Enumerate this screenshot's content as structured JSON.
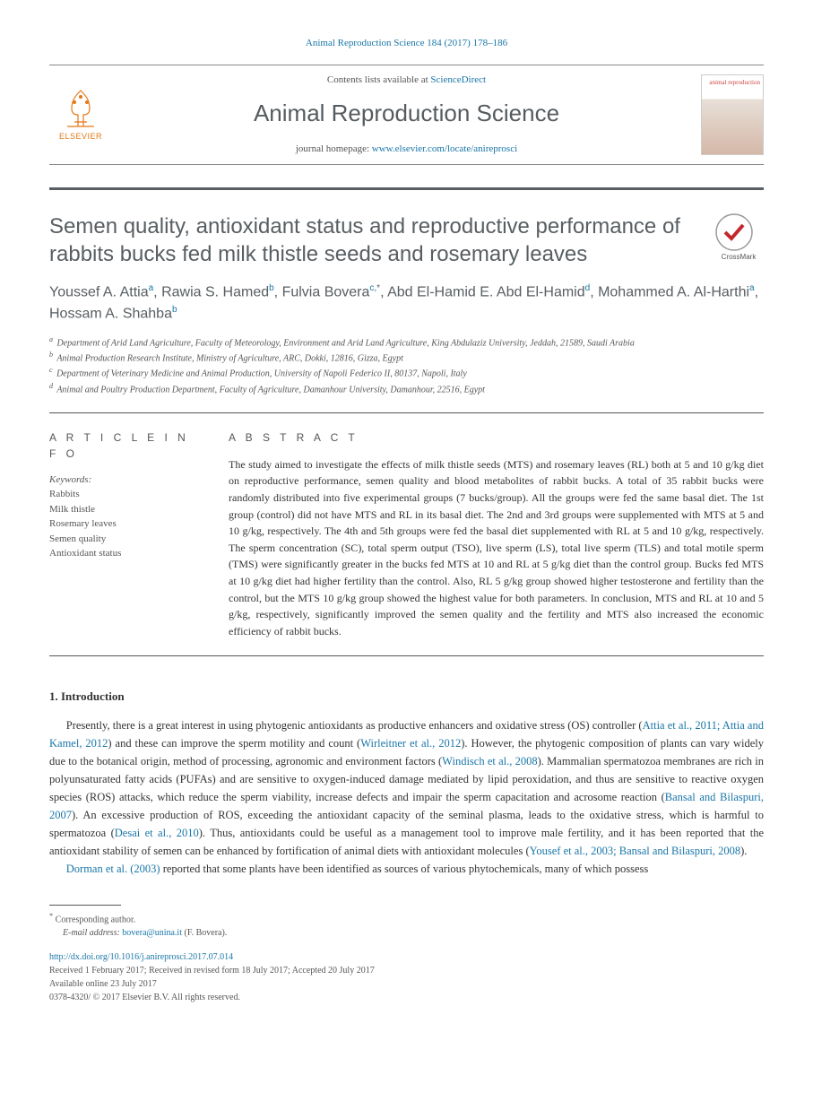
{
  "header": {
    "citation_prefix": "Animal Reproduction Science 184 (2017) 178–186",
    "contents_text": "Contents lists available at ",
    "contents_link": "ScienceDirect",
    "journal_name": "Animal Reproduction Science",
    "homepage_text": "journal homepage: ",
    "homepage_url": "www.elsevier.com/locate/anireprosci",
    "elsevier_label": "ELSEVIER",
    "cover_text": "animal reproduction"
  },
  "article": {
    "title": "Semen quality, antioxidant status and reproductive performance of rabbits bucks fed milk thistle seeds and rosemary leaves",
    "crossmark_label": "CrossMark",
    "authors_html": "Youssef A. Attia|a|, Rawia S. Hamed|b|, Fulvia Bovera|c,*|, Abd El-Hamid E. Abd El-Hamid|d|, Mohammed A. Al-Harthi|a|, Hossam A. Shahba|b|",
    "authors": [
      {
        "name": "Youssef A. Attia",
        "sup": "a"
      },
      {
        "name": "Rawia S. Hamed",
        "sup": "b"
      },
      {
        "name": "Fulvia Bovera",
        "sup": "c,",
        "star": "*"
      },
      {
        "name": "Abd El-Hamid E. Abd El-Hamid",
        "sup": "d"
      },
      {
        "name": "Mohammed A. Al-Harthi",
        "sup": "a"
      },
      {
        "name": "Hossam A. Shahba",
        "sup": "b"
      }
    ],
    "affiliations": [
      {
        "sup": "a",
        "text": "Department of Arid Land Agriculture, Faculty of Meteorology, Environment and Arid Land Agriculture, King Abdulaziz University, Jeddah, 21589, Saudi Arabia"
      },
      {
        "sup": "b",
        "text": "Animal Production Research Institute, Ministry of Agriculture, ARC, Dokki, 12816, Gizza, Egypt"
      },
      {
        "sup": "c",
        "text": "Department of Veterinary Medicine and Animal Production, University of Napoli Federico II, 80137, Napoli, Italy"
      },
      {
        "sup": "d",
        "text": "Animal and Poultry Production Department, Faculty of Agriculture, Damanhour University, Damanhour, 22516, Egypt"
      }
    ]
  },
  "info": {
    "heading": "A R T I C L E  I N F O",
    "keywords_label": "Keywords:",
    "keywords": [
      "Rabbits",
      "Milk thistle",
      "Rosemary leaves",
      "Semen quality",
      "Antioxidant status"
    ]
  },
  "abstract": {
    "heading": "A B S T R A C T",
    "text": "The study aimed to investigate the effects of milk thistle seeds (MTS) and rosemary leaves (RL) both at 5 and 10 g/kg diet on reproductive performance, semen quality and blood metabolites of rabbit bucks. A total of 35 rabbit bucks were randomly distributed into five experimental groups (7 bucks/group). All the groups were fed the same basal diet. The 1st group (control) did not have MTS and RL in its basal diet. The 2nd and 3rd groups were supplemented with MTS at 5 and 10 g/kg, respectively. The 4th and 5th groups were fed the basal diet supplemented with RL at 5 and 10 g/kg, respectively. The sperm concentration (SC), total sperm output (TSO), live sperm (LS), total live sperm (TLS) and total motile sperm (TMS) were significantly greater in the bucks fed MTS at 10 and RL at 5 g/kg diet than the control group. Bucks fed MTS at 10 g/kg diet had higher fertility than the control. Also, RL 5 g/kg group showed higher testosterone and fertility than the control, but the MTS 10 g/kg group showed the highest value for both parameters. In conclusion, MTS and RL at 10 and 5 g/kg, respectively, significantly improved the semen quality and the fertility and MTS also increased the economic efficiency of rabbit bucks."
  },
  "introduction": {
    "heading": "1. Introduction",
    "para1_pre": "Presently, there is a great interest in using phytogenic antioxidants as productive enhancers and oxidative stress (OS) controller (",
    "ref1": "Attia et al., 2011; Attia and Kamel, 2012",
    "para1_mid1": ") and these can improve the sperm motility and count (",
    "ref2": "Wirleitner et al., 2012",
    "para1_mid2": "). However, the phytogenic composition of plants can vary widely due to the botanical origin, method of processing, agronomic and environment factors (",
    "ref3": "Windisch et al., 2008",
    "para1_mid3": "). Mammalian spermatozoa membranes are rich in polyunsaturated fatty acids (PUFAs) and are sensitive to oxygen-induced damage mediated by lipid peroxidation, and thus are sensitive to reactive oxygen species (ROS) attacks, which reduce the sperm viability, increase defects and impair the sperm capacitation and acrosome reaction (",
    "ref4": "Bansal and Bilaspuri, 2007",
    "para1_mid4": "). An excessive production of ROS, exceeding the antioxidant capacity of the seminal plasma, leads to the oxidative stress, which is harmful to spermatozoa (",
    "ref5": "Desai et al., 2010",
    "para1_mid5": "). Thus, antioxidants could be useful as a management tool to improve male fertility, and it has been reported that the antioxidant stability of semen can be enhanced by fortification of animal diets with antioxidant molecules (",
    "ref6": "Yousef et al., 2003; Bansal and Bilaspuri, 2008",
    "para1_end": ").",
    "para2_ref": "Dorman et al. (2003)",
    "para2_rest": " reported that some plants have been identified as sources of various phytochemicals, many of which possess"
  },
  "footer": {
    "corr_label": "Corresponding author.",
    "email_label": "E-mail address: ",
    "email": "bovera@unina.it",
    "email_who": " (F. Bovera).",
    "doi": "http://dx.doi.org/10.1016/j.anireprosci.2017.07.014",
    "history1": "Received 1 February 2017; Received in revised form 18 July 2017; Accepted 20 July 2017",
    "history2": "Available online 23 July 2017",
    "copyright": "0378-4320/ © 2017 Elsevier B.V. All rights reserved."
  },
  "colors": {
    "link": "#1976a8",
    "heading_gray": "#585e62",
    "text": "#333333",
    "muted": "#555555",
    "elsevier_orange": "#e67817"
  }
}
